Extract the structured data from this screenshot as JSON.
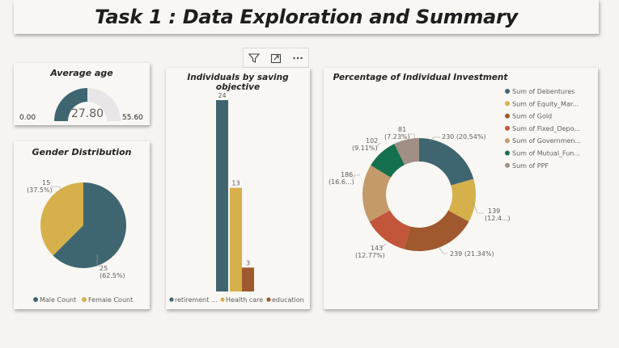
{
  "header": {
    "title": "Task 1 : Data Exploration and Summary"
  },
  "toolbar": {
    "icons": [
      "filter-icon",
      "focus-mode-icon",
      "more-options-icon"
    ]
  },
  "gauge": {
    "title": "Average age",
    "value_label": "27.80",
    "min_label": "0.00",
    "max_label": "55.60",
    "value": 27.8,
    "min": 0,
    "max": 55.6,
    "fill_color": "#3f6670",
    "track_color": "#e8e6e6"
  },
  "gender": {
    "title": "Gender Distribution",
    "label_female": "15",
    "label_female_pct": "(37.5%)",
    "label_male": "25",
    "label_male_pct": "(62.5%)",
    "legend": [
      "Male Count",
      "Female Count"
    ],
    "colors": {
      "male": "#3f6670",
      "female": "#d6b04a"
    }
  },
  "saving": {
    "title": "Individuals by saving objective",
    "labels": [
      "24",
      "13",
      "3"
    ],
    "legend": [
      "retirement ...",
      "Health care",
      "education"
    ],
    "colors": [
      "#3f6670",
      "#d6b04a",
      "#a0582f"
    ]
  },
  "investment": {
    "title": "Percentage of Individual Investment",
    "labels": [
      {
        "name": "debentures",
        "l1": "230 (20.54%)"
      },
      {
        "name": "equity",
        "l1": "139",
        "l2": "(12.4...)"
      },
      {
        "name": "gold",
        "l1": "239 (21.34%)"
      },
      {
        "name": "fixed",
        "l1": "143",
        "l2": "(12.77%)"
      },
      {
        "name": "government",
        "l1": "186",
        "l2": "(16.6...)"
      },
      {
        "name": "mutual",
        "l1": "102",
        "l2": "(9.11%)"
      },
      {
        "name": "ppf",
        "l1": "81",
        "l2": "(7.23%)"
      }
    ],
    "legend": [
      "Sum of Debentures",
      "Sum of Equity_Mar...",
      "Sum of Gold",
      "Sum of Fixed_Depo...",
      "Sum of Governmen...",
      "Sum of Mutual_Fun...",
      "Sum of PPF"
    ],
    "colors": [
      "#3f6670",
      "#d6b04a",
      "#a0582f",
      "#c2553a",
      "#c49a6a",
      "#15704d",
      "#9f8f84"
    ]
  },
  "chart_data": [
    {
      "type": "pie",
      "title": "Gender Distribution",
      "categories": [
        "Male Count",
        "Female Count"
      ],
      "values": [
        25,
        15
      ],
      "percentages": [
        62.5,
        37.5
      ],
      "legend": "bottom"
    },
    {
      "type": "bar",
      "title": "Individuals by saving objective",
      "categories": [
        "retirement ...",
        "Health care",
        "education"
      ],
      "values": [
        24,
        13,
        3
      ],
      "legend": "bottom"
    },
    {
      "type": "pie",
      "title": "Percentage of Individual Investment",
      "categories": [
        "Sum of Debentures",
        "Sum of Equity_Mar...",
        "Sum of Gold",
        "Sum of Fixed_Depo...",
        "Sum of Governmen...",
        "Sum of Mutual_Fun...",
        "Sum of PPF"
      ],
      "values": [
        230,
        139,
        239,
        143,
        186,
        102,
        81
      ],
      "percentages": [
        20.54,
        12.4,
        21.34,
        12.77,
        16.6,
        9.11,
        7.23
      ],
      "legend": "right"
    }
  ]
}
